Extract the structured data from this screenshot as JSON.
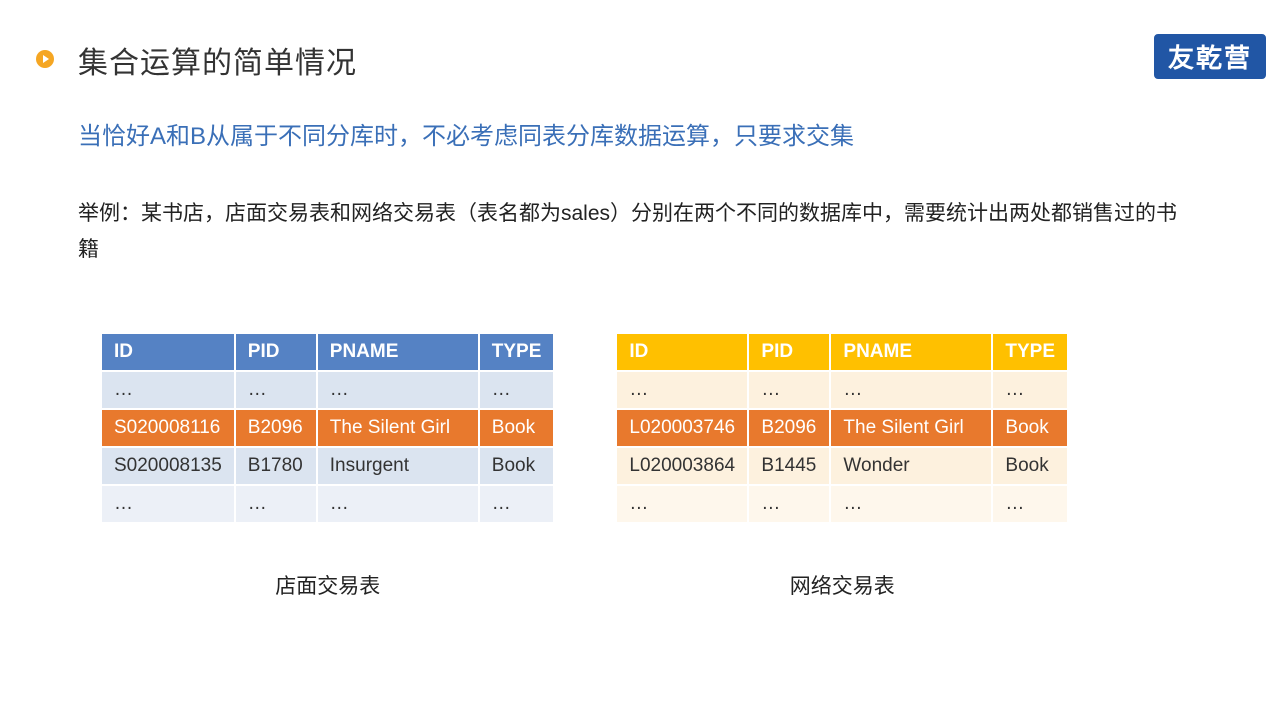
{
  "header": {
    "title": "集合运算的简单情况",
    "logo_text": "友乾营"
  },
  "subtitle": "当恰好A和B从属于不同分库时，不必考虑同表分库数据运算，只要求交集",
  "example_text": "举例：某书店，店面交易表和网络交易表（表名都为sales）分别在两个不同的数据库中，需要统计出两处都销售过的书籍",
  "columns": {
    "id": "ID",
    "pid": "PID",
    "pname": "PNAME",
    "type": "TYPE"
  },
  "ellipsis": "…",
  "tables": {
    "left": {
      "caption": "店面交易表",
      "header_color": "#5582c4",
      "alt_row_bg": [
        "#dbe4f0",
        "#ecf0f7"
      ],
      "highlight_bg": "#e8792d",
      "rows": [
        {
          "id": "…",
          "pid": "…",
          "pname": "…",
          "type": "…",
          "highlight": false
        },
        {
          "id": "S020008116",
          "pid": "B2096",
          "pname": "The Silent Girl",
          "type": "Book",
          "highlight": true
        },
        {
          "id": "S020008135",
          "pid": "B1780",
          "pname": "Insurgent",
          "type": "Book",
          "highlight": false
        },
        {
          "id": "…",
          "pid": "…",
          "pname": "…",
          "type": "…",
          "highlight": false
        }
      ]
    },
    "right": {
      "caption": "网络交易表",
      "header_color": "#ffc000",
      "alt_row_bg": [
        "#fdf1de",
        "#fef7ec"
      ],
      "highlight_bg": "#e8792d",
      "rows": [
        {
          "id": "…",
          "pid": "…",
          "pname": "…",
          "type": "…",
          "highlight": false
        },
        {
          "id": "L020003746",
          "pid": "B2096",
          "pname": "The Silent Girl",
          "type": "Book",
          "highlight": true
        },
        {
          "id": "L020003864",
          "pid": "B1445",
          "pname": "Wonder",
          "type": "Book",
          "highlight": false
        },
        {
          "id": "…",
          "pid": "…",
          "pname": "…",
          "type": "…",
          "highlight": false
        }
      ]
    }
  },
  "colors": {
    "accent_bullet": "#f5a623",
    "subtitle_text": "#3a6fb7",
    "logo_bg": "#2156a5",
    "text_dark": "#222222"
  }
}
